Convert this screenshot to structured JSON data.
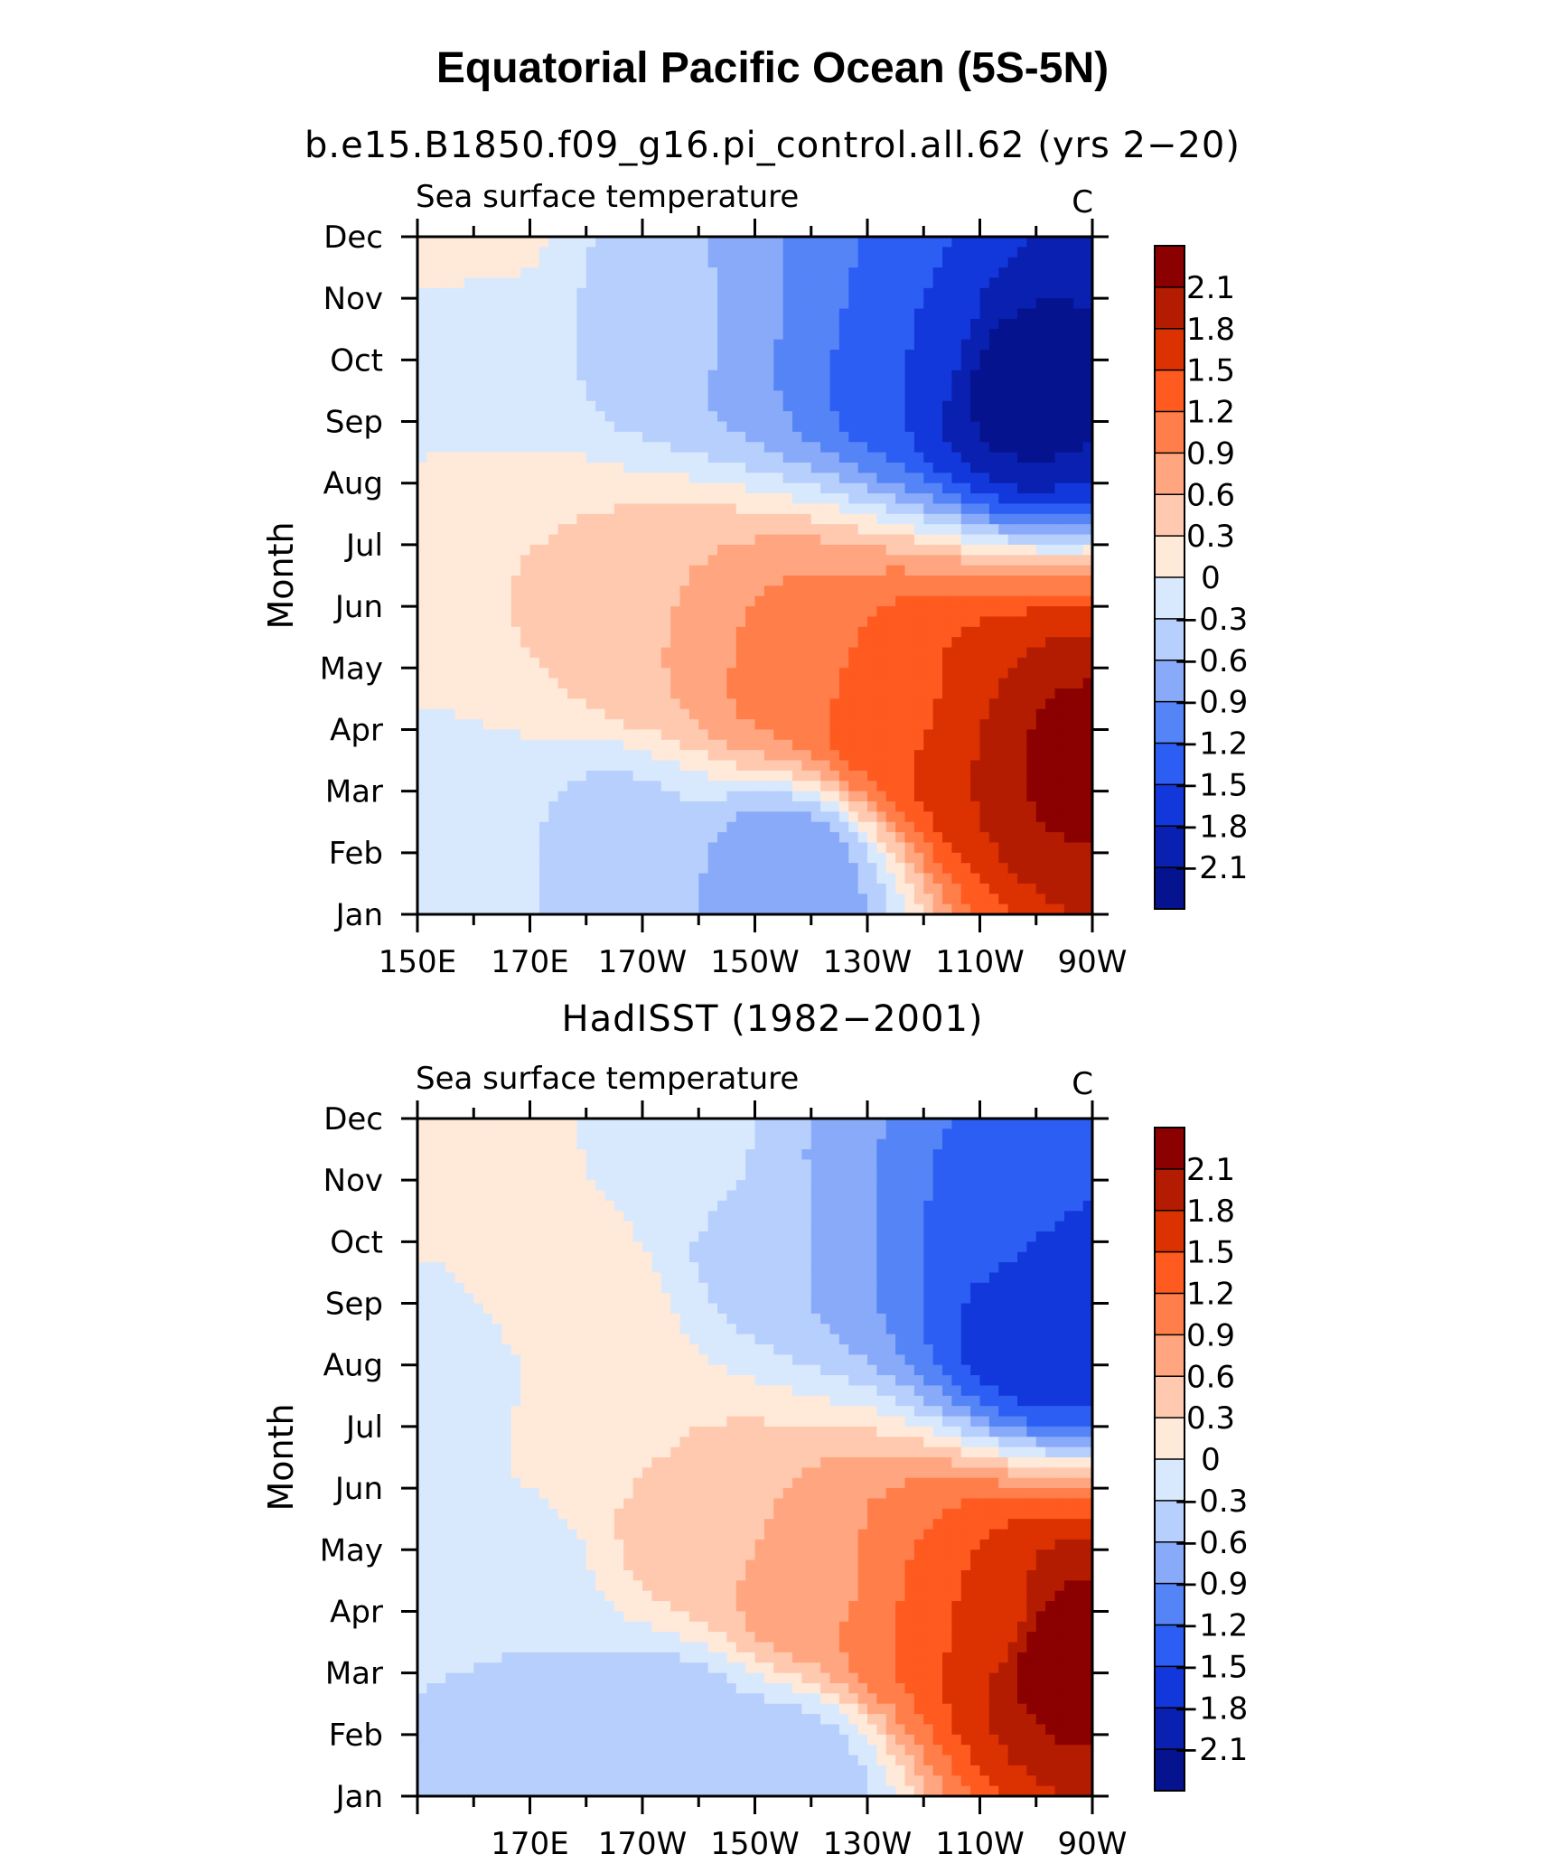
{
  "page_title": "Equatorial Pacific Ocean (5S-5N)",
  "colorbar": {
    "levels": [
      "2.1",
      "1.8",
      "1.5",
      "1.2",
      "0.9",
      "0.6",
      "0.3",
      "0",
      "−0.3",
      "−0.6",
      "−0.9",
      "−1.2",
      "−1.5",
      "−1.8",
      "−2.1"
    ],
    "colors": [
      "#8b0000",
      "#b31c00",
      "#dc3100",
      "#ff5a1f",
      "#ff7e4a",
      "#ffa680",
      "#ffc9b0",
      "#ffe9d9",
      "#d9e9fd",
      "#b7cffc",
      "#89aaf9",
      "#5584f7",
      "#2c5ef4",
      "#1238dc",
      "#0a20b0",
      "#06138f"
    ]
  },
  "chart_data": [
    {
      "type": "heatmap",
      "title": "b.e15.B1850.f09_g16.pi_control.all.62 (yrs 2−20)",
      "left_subtitle": "Sea surface temperature",
      "right_subtitle": "C",
      "ylabel": "Month",
      "y_ticks": [
        "Jan",
        "Feb",
        "Mar",
        "Apr",
        "May",
        "Jun",
        "Jul",
        "Aug",
        "Sep",
        "Oct",
        "Nov",
        "Dec"
      ],
      "x_ticks": [
        "150E",
        "170E",
        "170W",
        "150W",
        "130W",
        "110W",
        "90W"
      ],
      "x_range_deg_east": [
        150,
        270
      ],
      "units": "C",
      "features": [
        {
          "lon": 265,
          "month": 3.6,
          "value": 2.2
        },
        {
          "lon": 250,
          "month": 3.9,
          "value": 1.8
        },
        {
          "lon": 235,
          "month": 4.4,
          "value": 1.4
        },
        {
          "lon": 215,
          "month": 5.1,
          "value": 1.0
        },
        {
          "lon": 195,
          "month": 5.6,
          "value": 0.6
        },
        {
          "lon": 172,
          "month": 6.0,
          "value": 0.3
        },
        {
          "lon": 258,
          "month": 9.6,
          "value": -2.2
        },
        {
          "lon": 235,
          "month": 10.3,
          "value": -1.5
        },
        {
          "lon": 215,
          "month": 10.7,
          "value": -0.9
        },
        {
          "lon": 195,
          "month": 10.7,
          "value": -0.5
        },
        {
          "lon": 215,
          "month": 1.6,
          "value": -0.8
        },
        {
          "lon": 185,
          "month": 2.1,
          "value": -0.4
        },
        {
          "lon": 156,
          "month": 2.6,
          "value": -0.1
        },
        {
          "lon": 160,
          "month": 10.6,
          "value": -0.1
        },
        {
          "lon": 158,
          "month": 11.9,
          "value": 0.1
        }
      ]
    },
    {
      "type": "heatmap",
      "title": "HadISST (1982−2001)",
      "left_subtitle": "Sea surface temperature",
      "right_subtitle": "C",
      "ylabel": "Month",
      "y_ticks": [
        "Jan",
        "Feb",
        "Mar",
        "Apr",
        "May",
        "Jun",
        "Jul",
        "Aug",
        "Sep",
        "Oct",
        "Nov",
        "Dec"
      ],
      "x_ticks": [
        "170E",
        "170W",
        "150W",
        "130W",
        "110W",
        "90W"
      ],
      "x_range_deg_east": [
        150,
        270
      ],
      "units": "C",
      "features": [
        {
          "lon": 264,
          "month": 3.4,
          "value": 2.3
        },
        {
          "lon": 252,
          "month": 3.8,
          "value": 1.7
        },
        {
          "lon": 238,
          "month": 4.1,
          "value": 1.2
        },
        {
          "lon": 220,
          "month": 4.5,
          "value": 0.8
        },
        {
          "lon": 200,
          "month": 5.4,
          "value": 0.45
        },
        {
          "lon": 176,
          "month": 9.2,
          "value": 0.3
        },
        {
          "lon": 180,
          "month": 7.2,
          "value": 0.1
        },
        {
          "lon": 160,
          "month": 11.5,
          "value": 0.1
        },
        {
          "lon": 262,
          "month": 8.8,
          "value": -1.8
        },
        {
          "lon": 250,
          "month": 10.4,
          "value": -1.4
        },
        {
          "lon": 230,
          "month": 10.5,
          "value": -0.9
        },
        {
          "lon": 213,
          "month": 10.4,
          "value": -0.5
        },
        {
          "lon": 200,
          "month": 11.2,
          "value": -0.2
        },
        {
          "lon": 195,
          "month": 1.8,
          "value": -0.6
        },
        {
          "lon": 215,
          "month": 1.3,
          "value": -0.5
        },
        {
          "lon": 170,
          "month": 2.3,
          "value": -0.4
        },
        {
          "lon": 155,
          "month": 7.9,
          "value": -0.2
        },
        {
          "lon": 165,
          "month": 4.4,
          "value": -0.15
        }
      ]
    }
  ]
}
